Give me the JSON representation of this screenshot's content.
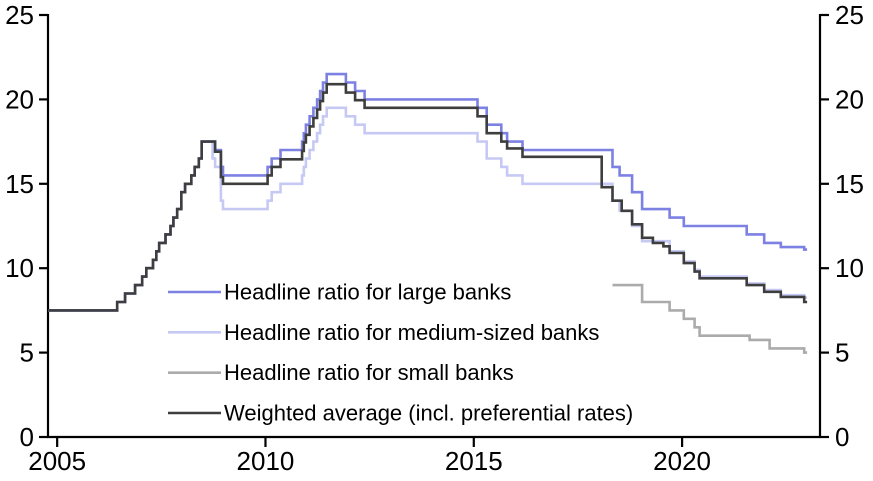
{
  "chart_data": {
    "type": "line",
    "title": "",
    "subtitle": "",
    "grid": false,
    "legend_position": "inside-lower-left",
    "x_axis": {
      "min": 2004.78,
      "max": 2023.31,
      "ticks": [
        2005,
        2010,
        2015,
        2020
      ],
      "tick_labels": [
        "2005",
        "2010",
        "2015",
        "2020"
      ]
    },
    "y_axis": {
      "min": 0,
      "max": 25,
      "ticks": [
        0,
        5,
        10,
        15,
        20,
        25
      ],
      "tick_labels": [
        "0",
        "5",
        "10",
        "15",
        "20",
        "25"
      ],
      "sides": [
        "left",
        "right"
      ]
    },
    "series": [
      {
        "id": "large-banks",
        "name": "Headline ratio for large banks",
        "color": "#7d81e3",
        "end_year": 2023.0,
        "points": [
          [
            2004.78,
            7.5
          ],
          [
            2006.44,
            8
          ],
          [
            2006.63,
            8.5
          ],
          [
            2006.87,
            9
          ],
          [
            2007.04,
            9.5
          ],
          [
            2007.14,
            10
          ],
          [
            2007.3,
            10.5
          ],
          [
            2007.38,
            11
          ],
          [
            2007.45,
            11.5
          ],
          [
            2007.6,
            12
          ],
          [
            2007.72,
            12.5
          ],
          [
            2007.79,
            13
          ],
          [
            2007.88,
            13.5
          ],
          [
            2007.98,
            14.5
          ],
          [
            2008.07,
            15
          ],
          [
            2008.22,
            15.5
          ],
          [
            2008.3,
            16
          ],
          [
            2008.4,
            16.5
          ],
          [
            2008.47,
            17.5
          ],
          [
            2008.79,
            17
          ],
          [
            2008.93,
            16
          ],
          [
            2008.98,
            15.5
          ],
          [
            2010.05,
            16
          ],
          [
            2010.15,
            16.5
          ],
          [
            2010.36,
            17
          ],
          [
            2010.88,
            17.5
          ],
          [
            2010.92,
            18
          ],
          [
            2010.97,
            18.5
          ],
          [
            2011.06,
            19
          ],
          [
            2011.15,
            19.5
          ],
          [
            2011.24,
            20
          ],
          [
            2011.31,
            20.5
          ],
          [
            2011.38,
            21
          ],
          [
            2011.47,
            21.5
          ],
          [
            2011.93,
            21
          ],
          [
            2012.15,
            20.5
          ],
          [
            2012.38,
            20
          ],
          [
            2015.09,
            19.5
          ],
          [
            2015.31,
            18.5
          ],
          [
            2015.66,
            18
          ],
          [
            2015.8,
            17.5
          ],
          [
            2016.17,
            17
          ],
          [
            2018.33,
            16
          ],
          [
            2018.5,
            15.5
          ],
          [
            2018.8,
            14.5
          ],
          [
            2019.04,
            13.5
          ],
          [
            2019.7,
            13
          ],
          [
            2020.04,
            12.5
          ],
          [
            2021.55,
            12
          ],
          [
            2021.97,
            11.5
          ],
          [
            2022.37,
            11.25
          ],
          [
            2022.93,
            11.1
          ]
        ]
      },
      {
        "id": "medium-banks",
        "name": "Headline ratio for medium-sized banks",
        "color": "#c7c9f5",
        "end_year": 2023.0,
        "points": [
          [
            2004.78,
            7.5
          ],
          [
            2006.44,
            8
          ],
          [
            2006.63,
            8.5
          ],
          [
            2006.87,
            9
          ],
          [
            2007.04,
            9.5
          ],
          [
            2007.14,
            10
          ],
          [
            2007.3,
            10.5
          ],
          [
            2007.38,
            11
          ],
          [
            2007.45,
            11.5
          ],
          [
            2007.6,
            12
          ],
          [
            2007.72,
            12.5
          ],
          [
            2007.79,
            13
          ],
          [
            2007.88,
            13.5
          ],
          [
            2007.98,
            14.5
          ],
          [
            2008.07,
            15
          ],
          [
            2008.22,
            15.5
          ],
          [
            2008.3,
            16
          ],
          [
            2008.4,
            16.5
          ],
          [
            2008.47,
            17.5
          ],
          [
            2008.73,
            16.5
          ],
          [
            2008.79,
            16
          ],
          [
            2008.93,
            14
          ],
          [
            2008.98,
            13.5
          ],
          [
            2010.05,
            14
          ],
          [
            2010.15,
            14.5
          ],
          [
            2010.36,
            15
          ],
          [
            2010.88,
            15.5
          ],
          [
            2010.92,
            16
          ],
          [
            2010.97,
            16.5
          ],
          [
            2011.06,
            17
          ],
          [
            2011.15,
            17.5
          ],
          [
            2011.24,
            18
          ],
          [
            2011.31,
            18.5
          ],
          [
            2011.38,
            19
          ],
          [
            2011.47,
            19.5
          ],
          [
            2011.93,
            19
          ],
          [
            2012.15,
            18.5
          ],
          [
            2012.38,
            18
          ],
          [
            2015.09,
            17.5
          ],
          [
            2015.31,
            16.5
          ],
          [
            2015.66,
            16
          ],
          [
            2015.8,
            15.5
          ],
          [
            2016.17,
            15
          ],
          [
            2018.33,
            14
          ],
          [
            2018.5,
            13.4
          ],
          [
            2018.8,
            12.5
          ],
          [
            2019.04,
            11.6
          ],
          [
            2019.7,
            11
          ],
          [
            2020.04,
            10.4
          ],
          [
            2020.3,
            9.9
          ],
          [
            2020.42,
            9.5
          ],
          [
            2021.55,
            9.1
          ],
          [
            2021.97,
            8.7
          ],
          [
            2022.37,
            8.4
          ],
          [
            2022.93,
            8.25
          ]
        ]
      },
      {
        "id": "small-banks",
        "name": "Headline ratio for small banks",
        "color": "#ababab",
        "end_year": 2023.0,
        "points": [
          [
            2018.33,
            9
          ],
          [
            2019.04,
            8
          ],
          [
            2019.7,
            7.5
          ],
          [
            2020.04,
            7
          ],
          [
            2020.3,
            6.5
          ],
          [
            2020.42,
            6
          ],
          [
            2021.62,
            5.75
          ],
          [
            2022.1,
            5.25
          ],
          [
            2022.93,
            5
          ]
        ]
      },
      {
        "id": "weighted-average",
        "name": "Weighted average (incl. preferential rates)",
        "color": "#3e3e3e",
        "end_year": 2023.0,
        "points": [
          [
            2004.78,
            7.5
          ],
          [
            2006.44,
            8
          ],
          [
            2006.63,
            8.5
          ],
          [
            2006.87,
            9
          ],
          [
            2007.04,
            9.5
          ],
          [
            2007.14,
            10
          ],
          [
            2007.3,
            10.5
          ],
          [
            2007.38,
            11
          ],
          [
            2007.45,
            11.5
          ],
          [
            2007.6,
            12
          ],
          [
            2007.72,
            12.5
          ],
          [
            2007.79,
            13
          ],
          [
            2007.88,
            13.5
          ],
          [
            2007.98,
            14.5
          ],
          [
            2008.07,
            15
          ],
          [
            2008.22,
            15.5
          ],
          [
            2008.3,
            16
          ],
          [
            2008.4,
            16.5
          ],
          [
            2008.47,
            17.5
          ],
          [
            2008.79,
            16.9
          ],
          [
            2008.93,
            15.4
          ],
          [
            2008.98,
            15
          ],
          [
            2010.05,
            15.5
          ],
          [
            2010.15,
            16
          ],
          [
            2010.36,
            16.45
          ],
          [
            2010.88,
            16.95
          ],
          [
            2010.92,
            17.45
          ],
          [
            2010.97,
            17.9
          ],
          [
            2011.06,
            18.4
          ],
          [
            2011.15,
            18.9
          ],
          [
            2011.24,
            19.4
          ],
          [
            2011.31,
            19.9
          ],
          [
            2011.38,
            20.4
          ],
          [
            2011.47,
            20.9
          ],
          [
            2011.93,
            20.4
          ],
          [
            2012.15,
            19.95
          ],
          [
            2012.38,
            19.5
          ],
          [
            2015.09,
            19
          ],
          [
            2015.31,
            18
          ],
          [
            2015.66,
            17.5
          ],
          [
            2015.8,
            17.1
          ],
          [
            2016.17,
            16.6
          ],
          [
            2018.07,
            14.8
          ],
          [
            2018.33,
            14
          ],
          [
            2018.55,
            13.4
          ],
          [
            2018.8,
            12.6
          ],
          [
            2019.04,
            11.8
          ],
          [
            2019.3,
            11.5
          ],
          [
            2019.55,
            11.3
          ],
          [
            2019.7,
            10.9
          ],
          [
            2020.04,
            10.3
          ],
          [
            2020.3,
            9.8
          ],
          [
            2020.42,
            9.4
          ],
          [
            2021.55,
            9
          ],
          [
            2021.97,
            8.6
          ],
          [
            2022.37,
            8.3
          ],
          [
            2022.93,
            8
          ]
        ]
      }
    ]
  },
  "style": {
    "background": "#ffffff",
    "axis_color": "#000000",
    "tick_text_color": "#000000",
    "legend_text_color": "#000000"
  }
}
